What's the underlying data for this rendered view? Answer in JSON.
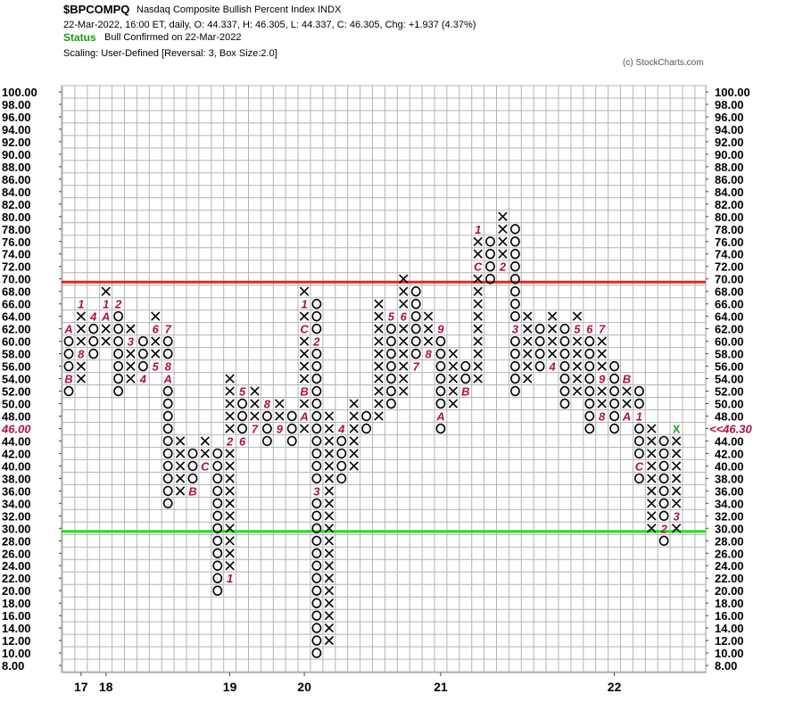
{
  "header": {
    "symbol": "$BPCOMPQ",
    "description": "Nasdaq Composite Bullish Percent Index  INDX",
    "quote_line": "22-Mar-2022, 16:00 ET, daily, O: 44.337, H: 46.305, L: 44.337, C: 46.305, Chg: +1.937 (4.37%)",
    "status_label": "Status",
    "status_text": "Bull Confirmed on 22-Mar-2022",
    "scaling": "Scaling: User-Defined [Reversal: 3, Box Size:2.0]",
    "copyright": "(c) StockCharts.com"
  },
  "chart_data": {
    "type": "point-and-figure",
    "box_size": 2,
    "reversal": 3,
    "y_range": [
      8,
      100
    ],
    "y_tick_labels": [
      "100.00",
      "98.00",
      "96.00",
      "94.00",
      "92.00",
      "90.00",
      "88.00",
      "86.00",
      "84.00",
      "82.00",
      "80.00",
      "78.00",
      "76.00",
      "74.00",
      "72.00",
      "70.00",
      "68.00",
      "66.00",
      "64.00",
      "62.00",
      "60.00",
      "58.00",
      "56.00",
      "54.00",
      "52.00",
      "50.00",
      "48.00",
      "46.00",
      "44.00",
      "42.00",
      "40.00",
      "38.00",
      "36.00",
      "34.00",
      "32.00",
      "30.00",
      "28.00",
      "26.00",
      "24.00",
      "22.00",
      "20.00",
      "18.00",
      "16.00",
      "14.00",
      "12.00",
      "10.00",
      "8.00"
    ],
    "last_price_label_left": "46.00",
    "last_price_label_right": "<<46.30",
    "last_price": 46.3,
    "reference_lines": [
      {
        "name": "bullish-alert",
        "value": 69.5,
        "color": "#dd2a1b"
      },
      {
        "name": "bearish-alert",
        "value": 29.5,
        "color": "#22dd22"
      }
    ],
    "x_year_labels": [
      {
        "label": "17",
        "col": 1
      },
      {
        "label": "18",
        "col": 3
      },
      {
        "label": "19",
        "col": 13
      },
      {
        "label": "20",
        "col": 19
      },
      {
        "label": "21",
        "col": 30
      },
      {
        "label": "22",
        "col": 44
      }
    ],
    "columns": [
      {
        "type": "O",
        "top": 62,
        "bottom": 52,
        "m": {
          "62": "A",
          "54": "B"
        }
      },
      {
        "type": "X",
        "top": 66,
        "bottom": 54,
        "m": {
          "66": "1",
          "58": "8"
        }
      },
      {
        "type": "O",
        "top": 64,
        "bottom": 58,
        "m": {
          "64": "4"
        }
      },
      {
        "type": "X",
        "top": 68,
        "bottom": 60,
        "m": {
          "66": "1",
          "64": "A",
          "58": "9"
        }
      },
      {
        "type": "O",
        "top": 66,
        "bottom": 52,
        "m": {
          "66": "2"
        }
      },
      {
        "type": "X",
        "top": 62,
        "bottom": 54,
        "m": {
          "60": "3"
        }
      },
      {
        "type": "O",
        "top": 60,
        "bottom": 54,
        "m": {
          "54": "4"
        }
      },
      {
        "type": "X",
        "top": 64,
        "bottom": 56,
        "m": {
          "62": "6",
          "56": "5"
        }
      },
      {
        "type": "O",
        "top": 62,
        "bottom": 34,
        "m": {
          "62": "7",
          "56": "8",
          "54": "A"
        }
      },
      {
        "type": "X",
        "top": 44,
        "bottom": 36
      },
      {
        "type": "O",
        "top": 42,
        "bottom": 36,
        "m": {
          "36": "B"
        }
      },
      {
        "type": "X",
        "top": 44,
        "bottom": 40,
        "m": {
          "40": "C"
        }
      },
      {
        "type": "O",
        "top": 42,
        "bottom": 20
      },
      {
        "type": "X",
        "top": 54,
        "bottom": 22,
        "m": {
          "44": "2",
          "22": "1"
        }
      },
      {
        "type": "O",
        "top": 52,
        "bottom": 44,
        "m": {
          "52": "5",
          "44": "6"
        }
      },
      {
        "type": "X",
        "top": 52,
        "bottom": 46,
        "m": {
          "46": "7"
        }
      },
      {
        "type": "O",
        "top": 50,
        "bottom": 44,
        "m": {
          "50": "8"
        }
      },
      {
        "type": "X",
        "top": 50,
        "bottom": 46,
        "m": {
          "46": "9"
        }
      },
      {
        "type": "O",
        "top": 48,
        "bottom": 44
      },
      {
        "type": "X",
        "top": 68,
        "bottom": 46,
        "m": {
          "66": "1",
          "62": "C",
          "52": "B",
          "48": "A"
        }
      },
      {
        "type": "O",
        "top": 66,
        "bottom": 10,
        "m": {
          "60": "2",
          "36": "3"
        }
      },
      {
        "type": "X",
        "top": 48,
        "bottom": 12
      },
      {
        "type": "O",
        "top": 46,
        "bottom": 38,
        "m": {
          "46": "4"
        }
      },
      {
        "type": "X",
        "top": 50,
        "bottom": 40
      },
      {
        "type": "O",
        "top": 48,
        "bottom": 46
      },
      {
        "type": "X",
        "top": 66,
        "bottom": 48
      },
      {
        "type": "O",
        "top": 64,
        "bottom": 50,
        "m": {
          "64": "5"
        }
      },
      {
        "type": "X",
        "top": 70,
        "bottom": 52,
        "m": {
          "64": "6"
        }
      },
      {
        "type": "O",
        "top": 68,
        "bottom": 56,
        "m": {
          "56": "7"
        }
      },
      {
        "type": "X",
        "top": 64,
        "bottom": 58,
        "m": {
          "58": "8"
        }
      },
      {
        "type": "O",
        "top": 62,
        "bottom": 46,
        "m": {
          "62": "9",
          "48": "A"
        }
      },
      {
        "type": "X",
        "top": 58,
        "bottom": 50
      },
      {
        "type": "O",
        "top": 56,
        "bottom": 52,
        "m": {
          "52": "B"
        }
      },
      {
        "type": "X",
        "top": 78,
        "bottom": 54,
        "m": {
          "78": "1",
          "72": "C"
        }
      },
      {
        "type": "O",
        "top": 76,
        "bottom": 70
      },
      {
        "type": "X",
        "top": 80,
        "bottom": 72,
        "m": {
          "72": "2"
        }
      },
      {
        "type": "O",
        "top": 78,
        "bottom": 52,
        "m": {
          "62": "3"
        }
      },
      {
        "type": "X",
        "top": 64,
        "bottom": 54
      },
      {
        "type": "O",
        "top": 62,
        "bottom": 56
      },
      {
        "type": "X",
        "top": 64,
        "bottom": 56,
        "m": {
          "56": "4"
        }
      },
      {
        "type": "O",
        "top": 62,
        "bottom": 50
      },
      {
        "type": "X",
        "top": 64,
        "bottom": 52,
        "m": {
          "62": "5"
        }
      },
      {
        "type": "O",
        "top": 62,
        "bottom": 46,
        "m": {
          "62": "6"
        }
      },
      {
        "type": "X",
        "top": 62,
        "bottom": 48,
        "m": {
          "62": "7",
          "54": "9",
          "48": "8"
        }
      },
      {
        "type": "O",
        "top": 56,
        "bottom": 46
      },
      {
        "type": "X",
        "top": 54,
        "bottom": 48,
        "m": {
          "54": "B",
          "48": "A"
        }
      },
      {
        "type": "O",
        "top": 52,
        "bottom": 38,
        "m": {
          "48": "1",
          "40": "C"
        }
      },
      {
        "type": "X",
        "top": 46,
        "bottom": 30
      },
      {
        "type": "O",
        "top": 44,
        "bottom": 28,
        "m": {
          "30": "2"
        }
      },
      {
        "type": "X",
        "top": 46,
        "bottom": 30,
        "m": {
          "46": "X",
          "32": "3"
        }
      }
    ]
  }
}
